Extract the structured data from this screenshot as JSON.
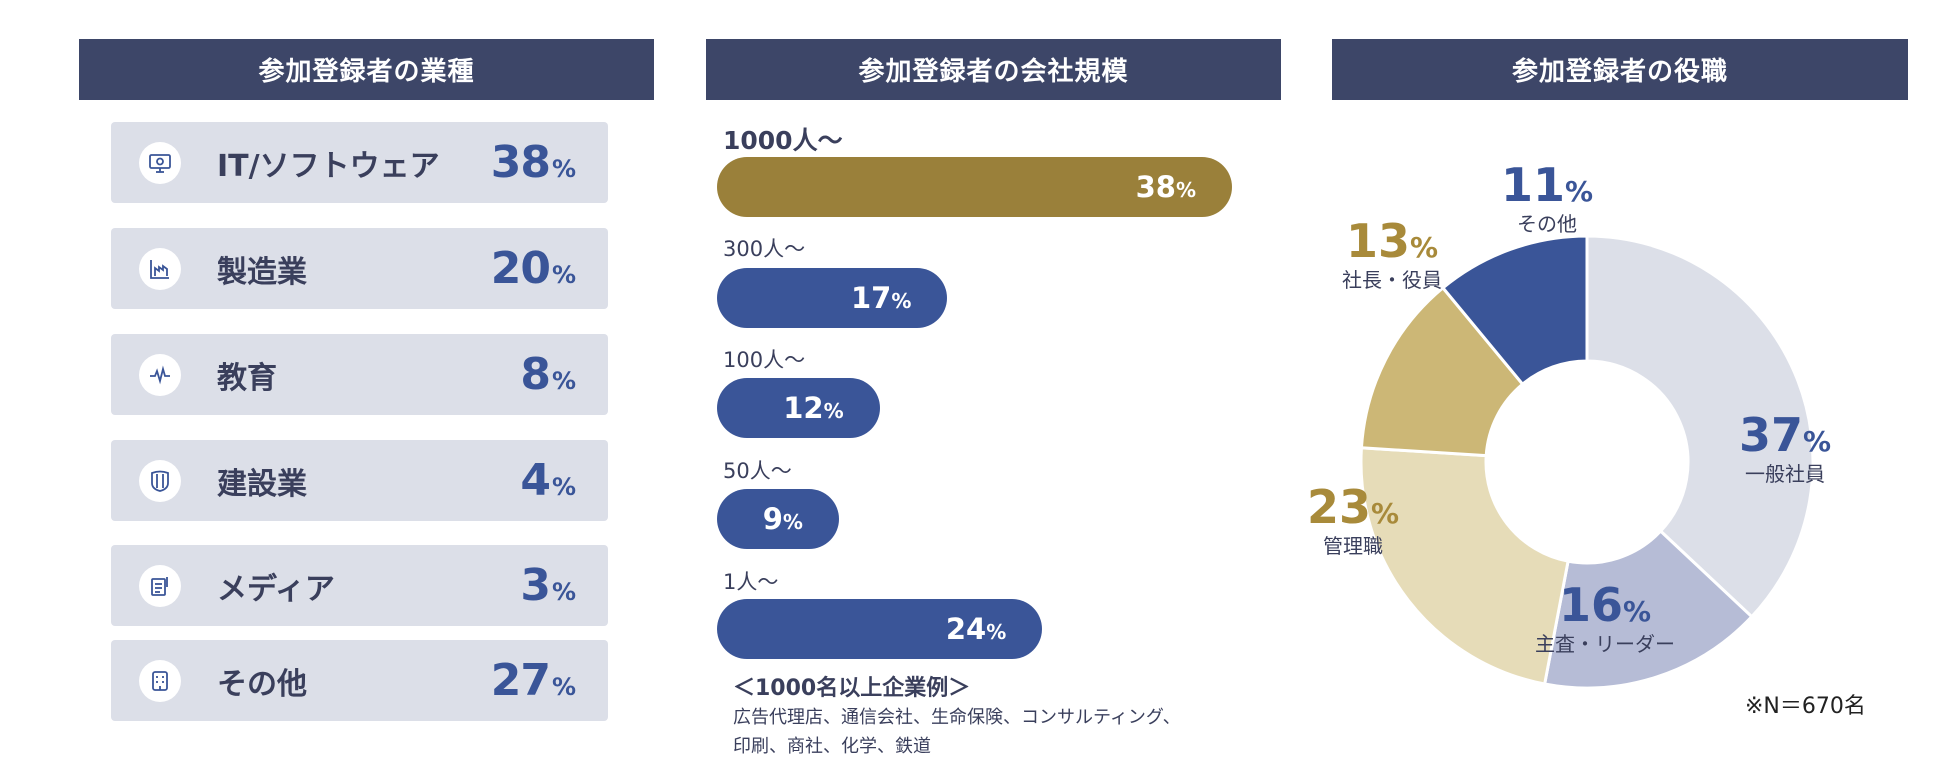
{
  "industry": {
    "title": "参加登録者の業種",
    "items": [
      {
        "label": "IT/ソフトウェア",
        "value": 38,
        "icon": "monitor-gear-icon"
      },
      {
        "label": "製造業",
        "value": 20,
        "icon": "factory-icon"
      },
      {
        "label": "教育",
        "value": 8,
        "icon": "pulse-icon"
      },
      {
        "label": "建設業",
        "value": 4,
        "icon": "shield-icon"
      },
      {
        "label": "メディア",
        "value": 3,
        "icon": "document-icon"
      },
      {
        "label": "その他",
        "value": 27,
        "icon": "building-icon"
      }
    ],
    "pct": "%"
  },
  "company_size": {
    "title": "参加登録者の会社規模",
    "note_title": "＜1000名以上企業例＞",
    "note_body": "広告代理店、通信会社、生命保険、コンサルティング、印刷、商社、化学、鉄道"
  },
  "position": {
    "title": "参加登録者の役職",
    "footnote": "※N＝670名"
  },
  "colors": {
    "header": "#3d4668",
    "navy": "#3a5598",
    "gold": "#9a803a",
    "gold_text": "#a88a3a",
    "seg_light": "#dcdfe8",
    "seg_periwinkle": "#b6bcd6",
    "seg_cream": "#e6dcb8",
    "seg_tan": "#ccb776"
  },
  "chart_data": [
    {
      "type": "bar",
      "orientation": "horizontal",
      "title": "参加登録者の会社規模",
      "categories": [
        "1000人〜",
        "300人〜",
        "100人〜",
        "50人〜",
        "1人〜"
      ],
      "values": [
        38,
        17,
        12,
        9,
        24
      ],
      "unit": "%",
      "highlight": "1000人〜"
    },
    {
      "type": "pie",
      "title": "参加登録者の役職",
      "donut": true,
      "categories": [
        "一般社員",
        "主査・リーダー",
        "管理職",
        "社長・役員",
        "その他"
      ],
      "values": [
        37,
        16,
        23,
        13,
        11
      ],
      "unit": "%"
    }
  ]
}
